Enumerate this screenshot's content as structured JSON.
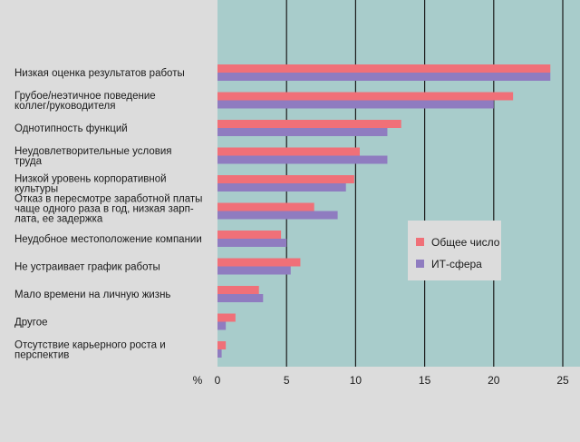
{
  "chart_data": {
    "type": "bar",
    "orientation": "horizontal",
    "unit_label": "%",
    "xlim": [
      0,
      25
    ],
    "ticks": [
      "0",
      "5",
      "10",
      "15",
      "20",
      "25"
    ],
    "grid": "vertical lines at each tick",
    "legend_position": "right, middle",
    "categories": [
      [
        "Низкая оценка результатов работы"
      ],
      [
        "Грубое/неэтичное поведение",
        "коллег/руководителя"
      ],
      [
        "Однотипность функций"
      ],
      [
        "Неудовлетворительные условия",
        "труда"
      ],
      [
        "Низкой уровень корпоративной",
        "культуры"
      ],
      [
        "Отказ в пересмотре заработной платы",
        "чаще одного раза в год, низкая зарп-",
        "лата, ее задержка"
      ],
      [
        "Неудобное местоположение компании"
      ],
      [
        "Не устраивает график работы"
      ],
      [
        "Мало времени на личную жизнь"
      ],
      [
        "Другое"
      ],
      [
        "Отсутствие карьерного роста и",
        "перспектив"
      ]
    ],
    "series": [
      {
        "name": "Общее число",
        "color": "#f07078",
        "values": [
          24.1,
          21.4,
          13.3,
          10.3,
          9.9,
          7.0,
          4.6,
          6.0,
          3.0,
          1.3,
          0.6
        ]
      },
      {
        "name": "ИТ-сфера",
        "color": "#8f7cc0",
        "values": [
          24.1,
          20.0,
          12.3,
          12.3,
          9.3,
          8.7,
          5.0,
          5.3,
          3.3,
          0.6,
          0.3
        ]
      }
    ],
    "colors": {
      "background": "#dcdcdc",
      "plot_area": "#a8cccb",
      "gridline": "#1a1a1a",
      "legend_box": "#dcdcdc"
    }
  }
}
